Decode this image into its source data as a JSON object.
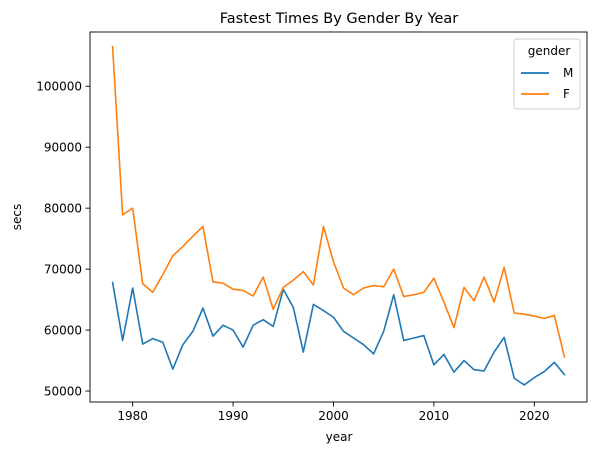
{
  "chart_data": {
    "type": "line",
    "title": "Fastest Times By Gender By Year",
    "xlabel": "year",
    "ylabel": "secs",
    "xlim": [
      1975.75,
      2025.25
    ],
    "ylim": [
      48200,
      108900
    ],
    "xticks": [
      1980,
      1990,
      2000,
      2010,
      2020
    ],
    "yticks": [
      50000,
      60000,
      70000,
      80000,
      90000,
      100000
    ],
    "grid": false,
    "legend": {
      "title": "gender",
      "placement": "top-right"
    },
    "x": [
      1978,
      1979,
      1980,
      1981,
      1982,
      1983,
      1984,
      1985,
      1986,
      1987,
      1988,
      1989,
      1990,
      1991,
      1992,
      1993,
      1994,
      1995,
      1996,
      1997,
      1998,
      1999,
      2000,
      2001,
      2002,
      2003,
      2004,
      2005,
      2006,
      2007,
      2008,
      2009,
      2010,
      2011,
      2012,
      2013,
      2014,
      2015,
      2016,
      2017,
      2018,
      2019,
      2020,
      2021,
      2022,
      2023
    ],
    "series": [
      {
        "name": "M",
        "color": "#1f77b4",
        "values": [
          67800,
          58300,
          66900,
          57700,
          58600,
          58000,
          53600,
          57600,
          59800,
          63600,
          59000,
          60800,
          60000,
          57200,
          60800,
          61700,
          60600,
          66700,
          63700,
          56400,
          64200,
          63200,
          62100,
          59800,
          58700,
          57600,
          56100,
          59800,
          65800,
          58300,
          58700,
          59100,
          54300,
          56000,
          53100,
          55000,
          53500,
          53300,
          56400,
          58800,
          52100,
          51000,
          52200,
          53200,
          54700,
          52700
        ]
      },
      {
        "name": "F",
        "color": "#ff7f0e",
        "values": [
          106500,
          78900,
          80000,
          67600,
          66200,
          69100,
          72200,
          73700,
          75400,
          77000,
          67900,
          67700,
          66700,
          66500,
          65600,
          68700,
          63400,
          67000,
          68200,
          69600,
          67400,
          77000,
          71200,
          66900,
          65800,
          66900,
          67300,
          67100,
          70000,
          65500,
          65800,
          66200,
          68500,
          64600,
          60400,
          67000,
          64800,
          68700,
          64600,
          70300,
          62800,
          62600,
          62300,
          61900,
          62400,
          55600
        ]
      }
    ]
  }
}
